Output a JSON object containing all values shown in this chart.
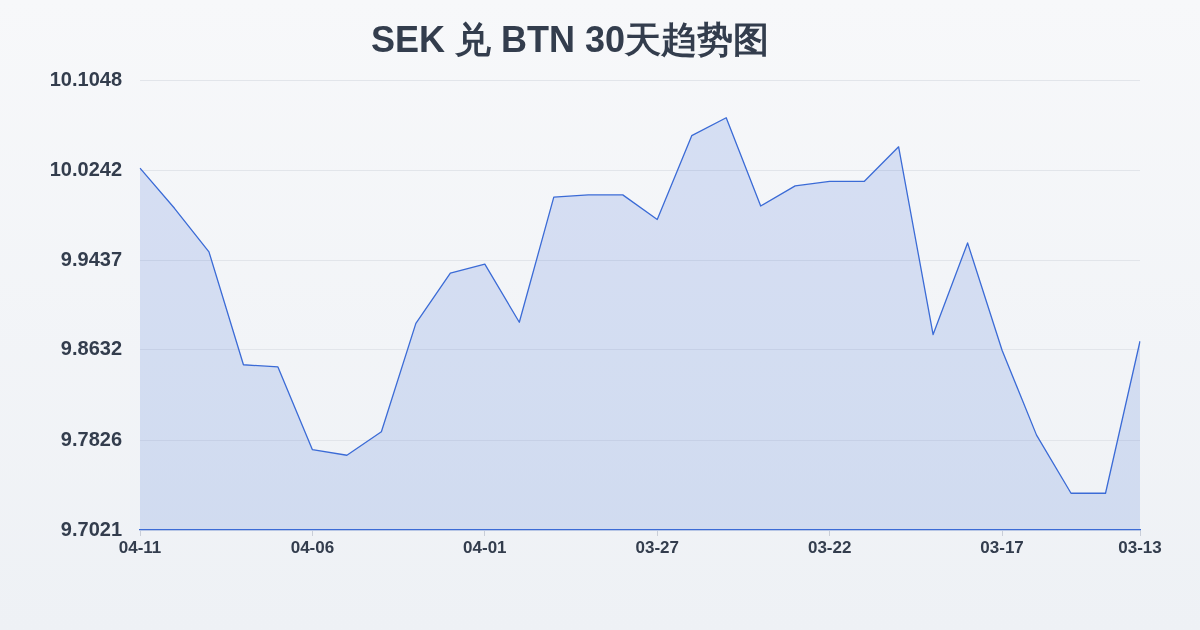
{
  "chart_data": {
    "type": "area",
    "title": "SEK 兑 BTN 30天趋势图",
    "categories": [
      "04-11",
      null,
      null,
      null,
      null,
      "04-06",
      null,
      null,
      null,
      null,
      "04-01",
      null,
      null,
      null,
      null,
      "03-27",
      null,
      null,
      null,
      null,
      "03-22",
      null,
      null,
      null,
      null,
      "03-17",
      null,
      null,
      null,
      "03-13"
    ],
    "values": [
      10.026,
      9.99,
      9.951,
      9.85,
      9.848,
      9.774,
      9.769,
      9.79,
      9.887,
      9.932,
      9.94,
      9.888,
      10.0,
      10.002,
      10.002,
      9.98,
      10.055,
      10.071,
      9.992,
      10.01,
      10.014,
      10.014,
      10.045,
      9.877,
      9.959,
      9.863,
      9.787,
      9.735,
      9.735,
      9.871
    ],
    "color": "#3b6bd6",
    "ylim": [
      9.7021,
      10.1048
    ],
    "yticks": [
      9.7021,
      9.7826,
      9.8632,
      9.9437,
      10.0242,
      10.1048
    ],
    "grid": "y",
    "marker": "none"
  }
}
